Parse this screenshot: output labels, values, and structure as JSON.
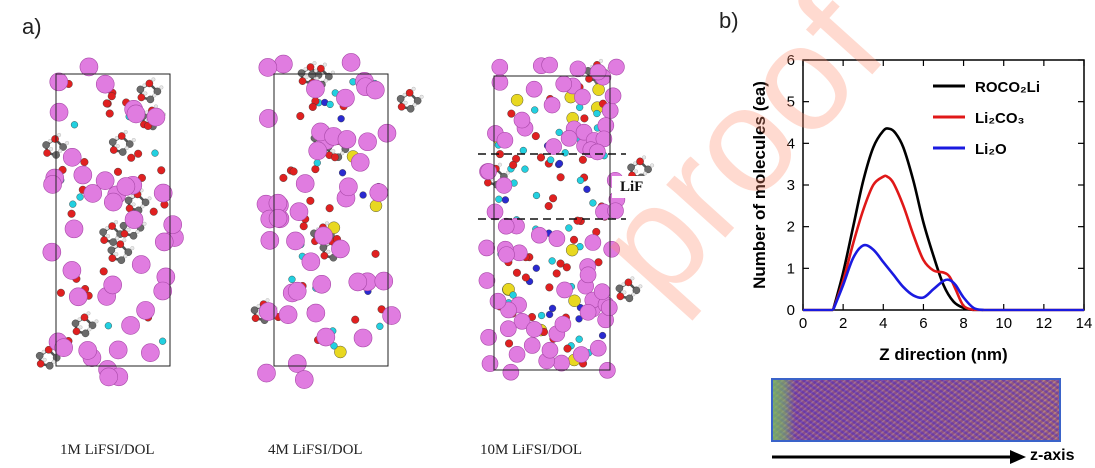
{
  "panels": {
    "a_label": "a)",
    "b_label": "b)"
  },
  "simulations": [
    {
      "caption": "1M LiFSI/DOL"
    },
    {
      "caption": "4M LiFSI/DOL"
    },
    {
      "caption": "10M LiFSI/DOL",
      "annotation": "LiF"
    }
  ],
  "colors": {
    "li": "#e07ce0",
    "o": "#e02020",
    "c": "#6b6b6b",
    "h": "#e8e8e8",
    "f": "#22d0e0",
    "s": "#e8d820",
    "n": "#2a2ad0"
  },
  "axis_arrow_label": "z-axis",
  "watermark": "proof",
  "chart_data": {
    "type": "line",
    "xlabel": "Z direction (nm)",
    "ylabel": "Number of molecules (ea)",
    "xlim": [
      0,
      14
    ],
    "ylim": [
      0,
      6
    ],
    "xticks": [
      "0",
      "2",
      "4",
      "6",
      "8",
      "10",
      "12",
      "14"
    ],
    "yticks": [
      "0",
      "1",
      "2",
      "3",
      "4",
      "5",
      "6"
    ],
    "legend_position": "top-right",
    "series": [
      {
        "name": "ROCO₂Li",
        "color": "#000000",
        "x": [
          1.5,
          2.0,
          2.5,
          3.0,
          3.5,
          4.0,
          4.3,
          4.6,
          5.0,
          5.5,
          6.0,
          6.5,
          7.0,
          7.5,
          8.0,
          8.5
        ],
        "y": [
          0.0,
          0.9,
          2.0,
          3.1,
          3.9,
          4.3,
          4.35,
          4.25,
          3.9,
          3.1,
          2.1,
          1.3,
          0.6,
          0.2,
          0.05,
          0.0
        ]
      },
      {
        "name": "Li₂CO₃",
        "color": "#e01818",
        "x": [
          1.5,
          2.0,
          2.5,
          3.0,
          3.5,
          4.0,
          4.2,
          4.5,
          5.0,
          5.5,
          6.0,
          6.5,
          7.0,
          7.3,
          7.6,
          8.0,
          8.5
        ],
        "y": [
          0.0,
          0.7,
          1.6,
          2.4,
          3.0,
          3.2,
          3.2,
          3.05,
          2.5,
          1.8,
          1.2,
          0.95,
          0.9,
          0.8,
          0.5,
          0.1,
          0.0
        ]
      },
      {
        "name": "Li₂O",
        "color": "#1a1ae0",
        "x": [
          1.5,
          2.0,
          2.5,
          3.0,
          3.5,
          4.0,
          4.5,
          5.0,
          5.5,
          6.0,
          6.5,
          7.0,
          7.3,
          7.6,
          8.0,
          8.5,
          9.0
        ],
        "y": [
          0.0,
          0.6,
          1.25,
          1.55,
          1.45,
          1.15,
          0.85,
          0.55,
          0.35,
          0.3,
          0.5,
          0.7,
          0.72,
          0.6,
          0.3,
          0.05,
          0.0
        ]
      }
    ]
  }
}
